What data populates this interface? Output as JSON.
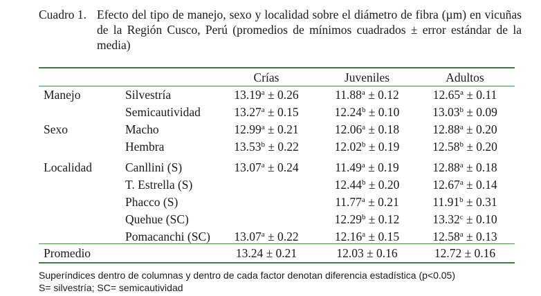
{
  "caption": {
    "label": "Cuadro 1.",
    "text": "Efecto del tipo de manejo, sexo y localidad sobre el diámetro de fibra (µm) en vicuñas de la Región Cusco, Perú (promedios de mínimos cuadrados ± error estándar de la media)"
  },
  "table": {
    "headers": [
      "Crías",
      "Juveniles",
      "Adultos"
    ],
    "rows": [
      {
        "factor": "Manejo",
        "level": "Silvestría",
        "crias": {
          "v": "13.19",
          "s": "a",
          "e": " ± 0.26"
        },
        "juveniles": {
          "v": "11.88",
          "s": "a",
          "e": " ± 0.12"
        },
        "adultos": {
          "v": "12.65",
          "s": "a",
          "e": " ± 0.11"
        }
      },
      {
        "factor": "",
        "level": "Semicautividad",
        "crias": {
          "v": "13.27",
          "s": "a",
          "e": " ± 0.15"
        },
        "juveniles": {
          "v": "12.24",
          "s": "b",
          "e": " ± 0.10"
        },
        "adultos": {
          "v": "13.03",
          "s": "b",
          "e": " ± 0.09"
        }
      },
      {
        "factor": "Sexo",
        "level": "Macho",
        "crias": {
          "v": "12.99",
          "s": "a",
          "e": " ± 0.21"
        },
        "juveniles": {
          "v": "12.06",
          "s": "a",
          "e": " ± 0.18"
        },
        "adultos": {
          "v": "12.88",
          "s": "a",
          "e": " ± 0.20"
        }
      },
      {
        "factor": "",
        "level": "Hembra",
        "crias": {
          "v": "13.53",
          "s": "b",
          "e": " ± 0.22"
        },
        "juveniles": {
          "v": "12.02",
          "s": "b",
          "e": " ± 0.19"
        },
        "adultos": {
          "v": "12.58",
          "s": "b",
          "e": " ± 0.20"
        }
      },
      {
        "factor": "Localidad",
        "level": "Canllini (S)",
        "crias": {
          "v": "13.07",
          "s": "a",
          "e": " ± 0.24"
        },
        "juveniles": {
          "v": "11.49",
          "s": "a",
          "e": " ± 0.19"
        },
        "adultos": {
          "v": "12.88",
          "s": "a",
          "e": " ± 0.18"
        }
      },
      {
        "factor": "",
        "level": "T. Estrella (S)",
        "crias": null,
        "juveniles": {
          "v": "12.44",
          "s": "b",
          "e": " ± 0.20"
        },
        "adultos": {
          "v": "12.67",
          "s": "a",
          "e": " ± 0.14"
        }
      },
      {
        "factor": "",
        "level": "Phacco (S)",
        "crias": null,
        "juveniles": {
          "v": "11.77",
          "s": "a",
          "e": " ± 0.21"
        },
        "adultos": {
          "v": "11.91",
          "s": "b",
          "e": " ± 0.31"
        }
      },
      {
        "factor": "",
        "level": "Quehue (SC)",
        "crias": null,
        "juveniles": {
          "v": "12.29",
          "s": "b",
          "e": " ± 0.12"
        },
        "adultos": {
          "v": "13.32",
          "s": "c",
          "e": " ± 0.10"
        }
      },
      {
        "factor": "",
        "level": "Pomacanchi (SC)",
        "crias": {
          "v": "13.07",
          "s": "a",
          "e": " ± 0.22"
        },
        "juveniles": {
          "v": "12.16",
          "s": "a",
          "e": " ± 0.15"
        },
        "adultos": {
          "v": "12.58",
          "s": "a",
          "e": " ± 0.13"
        }
      }
    ],
    "total": {
      "label": "Promedio",
      "crias": "13.24 ± 0.21",
      "juveniles": "12.03 ± 0.16",
      "adultos": "12.72 ± 0.16"
    }
  },
  "footnotes": [
    "Superíndices dentro de columnas y dentro de cada factor denotan diferencia estadística (p<0.05)",
    "S= silvestría; SC= semicautividad"
  ]
}
